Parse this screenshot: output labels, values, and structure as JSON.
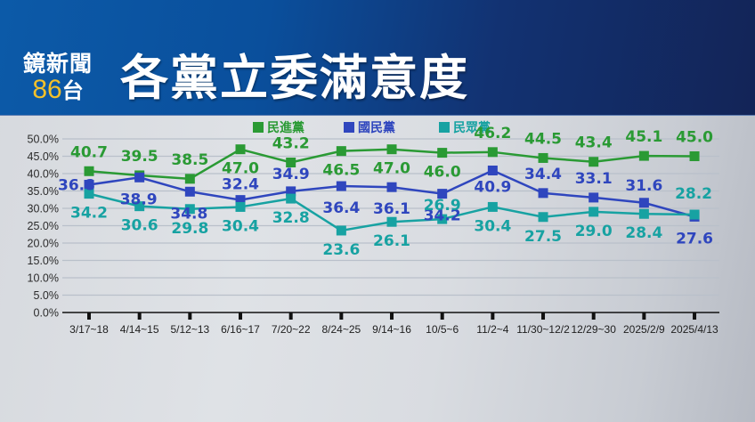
{
  "header": {
    "logo_top": "鏡新聞",
    "logo_num": "86",
    "logo_suffix": "台",
    "title": "各黨立委滿意度"
  },
  "colors": {
    "dpp": "#2a9a34",
    "kmt": "#2f46be",
    "tpp": "#17a2a2",
    "header_start": "#0c5aa8",
    "header_end": "#132457",
    "logo_accent": "#f4c12a"
  },
  "legend": [
    {
      "label": "民進黨",
      "color": "#2a9a34"
    },
    {
      "label": "國民黨",
      "color": "#2f46be"
    },
    {
      "label": "民眾黨",
      "color": "#17a2a2"
    }
  ],
  "chart_data": {
    "type": "line",
    "title": "各黨立委滿意度",
    "xlabel": "",
    "ylabel": "",
    "ylim": [
      0,
      50
    ],
    "y_ticks": [
      "0.0%",
      "5.0%",
      "10.0%",
      "15.0%",
      "20.0%",
      "25.0%",
      "30.0%",
      "35.0%",
      "40.0%",
      "45.0%",
      "50.0%"
    ],
    "grid": true,
    "legend_position": "top",
    "categories": [
      "3/17~18",
      "4/14~15",
      "5/12~13",
      "6/16~17",
      "7/20~22",
      "8/24~25",
      "9/14~16",
      "10/5~6",
      "11/2~4",
      "11/30~12/2",
      "12/29~30",
      "2025/2/9",
      "2025/4/13"
    ],
    "series": [
      {
        "name": "民進黨",
        "color": "#2a9a34",
        "values": [
          40.7,
          39.5,
          38.5,
          47.0,
          43.2,
          46.5,
          47.0,
          46.0,
          46.2,
          44.5,
          43.4,
          45.1,
          45.0
        ]
      },
      {
        "name": "國民黨",
        "color": "#2f46be",
        "values": [
          36.8,
          38.9,
          34.8,
          32.4,
          34.9,
          36.4,
          36.1,
          34.2,
          40.9,
          34.4,
          33.1,
          31.6,
          27.6
        ]
      },
      {
        "name": "民眾黨",
        "color": "#17a2a2",
        "values": [
          34.2,
          30.6,
          29.8,
          30.4,
          32.8,
          23.6,
          26.1,
          26.9,
          30.4,
          27.5,
          29.0,
          28.4,
          28.2
        ]
      }
    ]
  }
}
